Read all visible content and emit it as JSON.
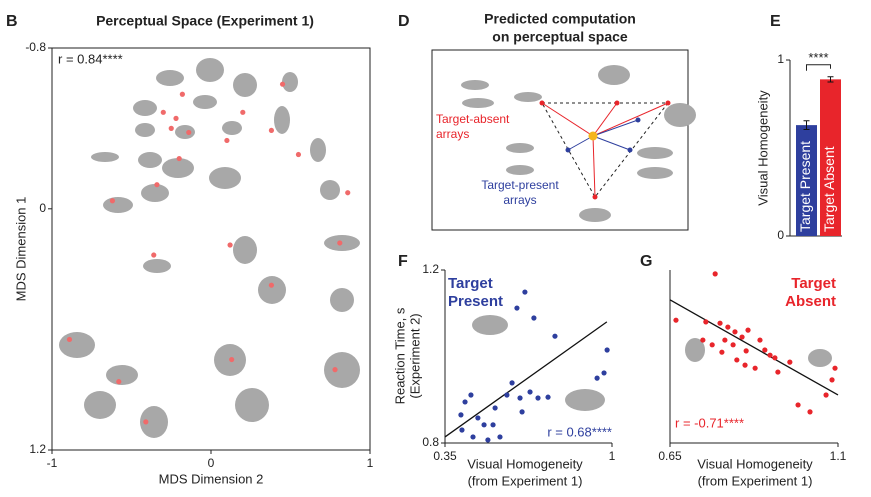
{
  "chart_data": [
    {
      "type": "scatter",
      "panel_label": "B",
      "title": "Perceptual Space (Experiment 1)",
      "xlabel": [
        "MDS Dimension 2"
      ],
      "ylabel": [
        "MDS Dimension 1"
      ],
      "annotation": "r = 0.84****",
      "xlim": [
        -1,
        1
      ],
      "ylim": [
        -0.8,
        1.2
      ],
      "y_inverted": true,
      "xticks": [
        -1,
        0,
        1
      ],
      "yticks": [
        -0.8,
        0,
        1.2
      ],
      "frame": true,
      "color": "#f06a6a",
      "x": [
        -0.18,
        -0.3,
        -0.22,
        -0.25,
        -0.14,
        0.2,
        0.1,
        0.38,
        0.45,
        0.55,
        -0.2,
        -0.34,
        -0.62,
        0.86,
        0.12,
        -0.36,
        0.81,
        0.38,
        -0.89,
        -0.58,
        0.13,
        -0.41,
        0.78
      ],
      "y": [
        -0.57,
        -0.48,
        -0.45,
        -0.4,
        -0.38,
        -0.48,
        -0.34,
        -0.39,
        -0.62,
        -0.27,
        -0.25,
        -0.12,
        -0.04,
        -0.08,
        0.18,
        0.23,
        0.17,
        0.38,
        0.65,
        0.86,
        0.75,
        1.06,
        0.8
      ]
    },
    {
      "type": "bar",
      "panel_label": "E",
      "ylabel": [
        "Visual Homogeneity"
      ],
      "annotation": "****",
      "categories": [
        "Target Present",
        "Target Absent"
      ],
      "values": [
        0.63,
        0.89
      ],
      "errors": [
        0.025,
        0.015
      ],
      "colors": [
        "#2e3f9e",
        "#e8252b"
      ],
      "ylim": [
        0,
        1
      ],
      "yticks": [
        0,
        1
      ]
    },
    {
      "type": "scatter",
      "panel_label": "F",
      "title": [
        "Target",
        "Present"
      ],
      "xlabel": [
        "Visual Homogeneity",
        "(from Experiment 1)"
      ],
      "ylabel": [
        "Reaction Time, s",
        "(Experiment 2)"
      ],
      "annotation": "r = 0.68****",
      "xlim": [
        0.35,
        1
      ],
      "ylim": [
        0.8,
        1.2
      ],
      "xticks": [
        0.35,
        1
      ],
      "yticks": [
        0.8,
        1.2
      ],
      "color": "#2e3f9e",
      "x": [
        0.428,
        0.451,
        0.412,
        0.478,
        0.502,
        0.545,
        0.591,
        0.611,
        0.642,
        0.681,
        0.712,
        0.751,
        0.537,
        0.416,
        0.459,
        0.517,
        0.564,
        0.65,
        0.661,
        0.63,
        0.696,
        0.778,
        0.981,
        0.969,
        0.942
      ],
      "y": [
        0.895,
        0.911,
        0.865,
        0.858,
        0.842,
        0.881,
        0.911,
        0.939,
        0.904,
        0.918,
        0.904,
        0.906,
        0.842,
        0.83,
        0.814,
        0.807,
        0.814,
        0.872,
        1.149,
        1.112,
        1.089,
        1.047,
        1.015,
        0.962,
        0.95
      ],
      "fit": {
        "x": [
          0.35,
          0.98
        ],
        "y": [
          0.814,
          1.08
        ]
      }
    },
    {
      "type": "scatter",
      "panel_label": "G",
      "title": [
        "Target",
        "Absent"
      ],
      "xlabel": [
        "Visual Homogeneity",
        "(from Experiment 1)"
      ],
      "annotation": "r = -0.71****",
      "xlim": [
        0.65,
        1.1
      ],
      "ylim": [
        0.8,
        1.2
      ],
      "xticks": [
        0.65,
        1.1
      ],
      "color": "#e8252b",
      "x": [
        0.771,
        0.666,
        0.746,
        0.784,
        0.805,
        0.824,
        0.843,
        0.797,
        0.819,
        0.854,
        0.859,
        0.891,
        0.904,
        0.918,
        0.931,
        0.971,
        0.789,
        0.829,
        0.851,
        0.878,
        0.939,
        0.993,
        1.025,
        1.092,
        1.084,
        1.068,
        0.738,
        0.763
      ],
      "y": [
        1.191,
        1.084,
        1.08,
        1.077,
        1.068,
        1.057,
        1.045,
        1.038,
        1.027,
        1.013,
        1.061,
        1.038,
        1.015,
        1.003,
        0.997,
        0.987,
        1.01,
        0.992,
        0.98,
        0.973,
        0.964,
        0.888,
        0.872,
        0.973,
        0.946,
        0.911,
        1.038,
        1.027
      ],
      "fit": {
        "x": [
          0.65,
          1.1
        ],
        "y": [
          1.131,
          0.911
        ]
      }
    }
  ],
  "diagram": {
    "panel_label": "D",
    "title": [
      "Predicted computation",
      "on perceptual space"
    ],
    "target_absent": [
      "Target-absent",
      "arrays"
    ],
    "target_present": [
      "Target-present",
      "arrays"
    ]
  }
}
